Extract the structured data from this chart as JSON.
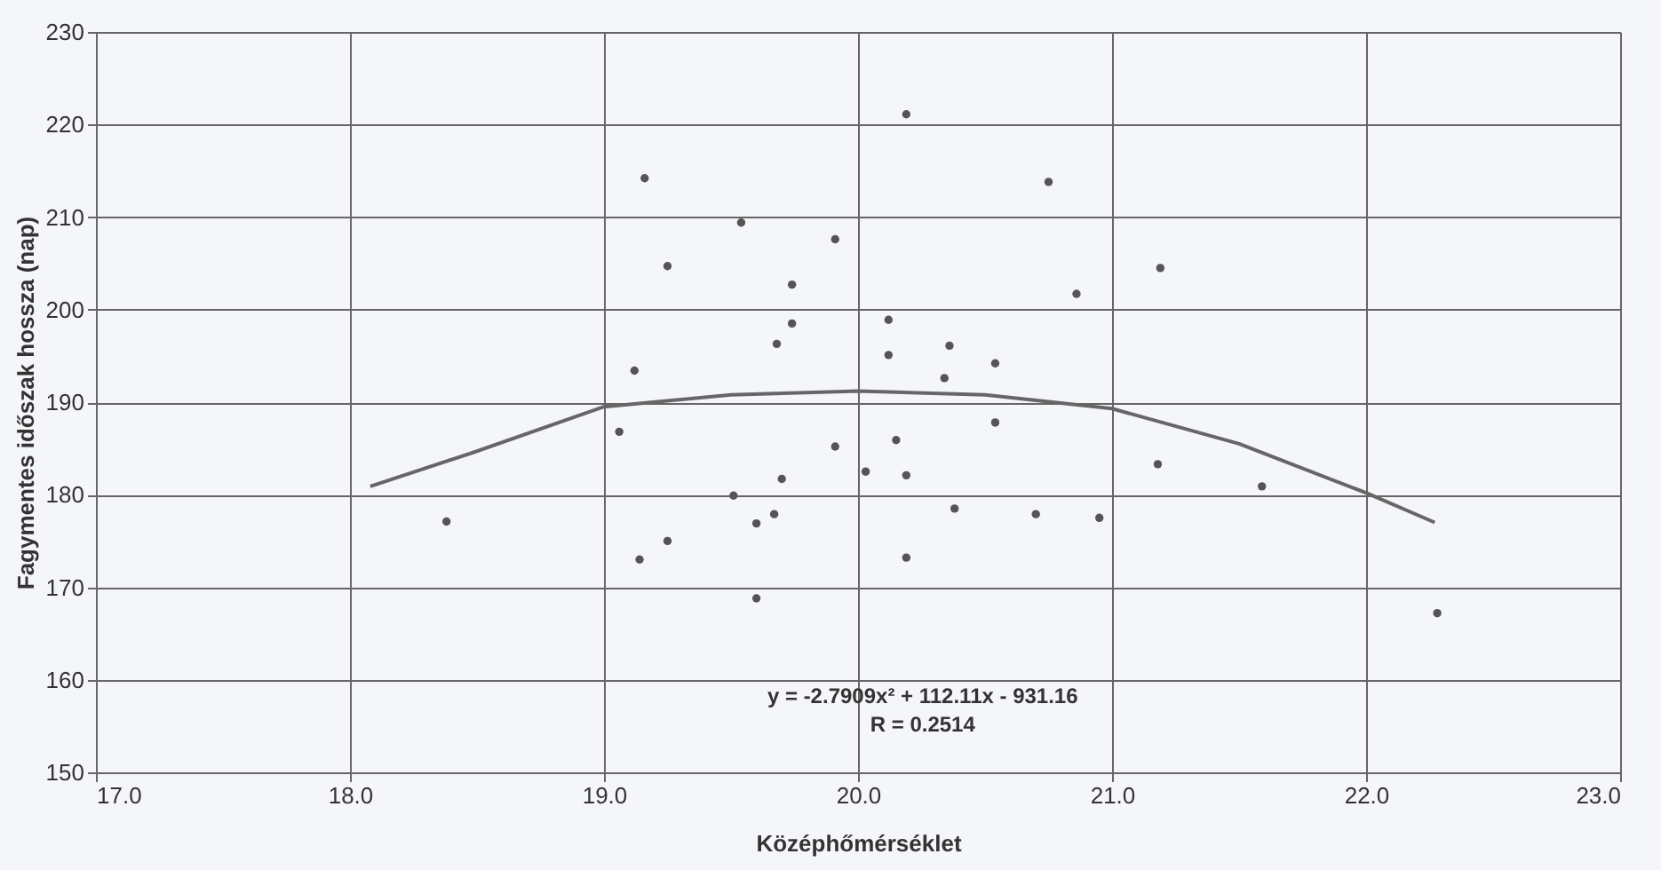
{
  "chart_data": {
    "type": "scatter",
    "xlabel": "Középhőmérséklet",
    "ylabel": "Fagymentes időszak hossza (nap)",
    "xlim": [
      17,
      23
    ],
    "ylim": [
      150,
      230
    ],
    "xticks": [
      {
        "value": 17,
        "label": "17.0"
      },
      {
        "value": 18,
        "label": "18.0"
      },
      {
        "value": 19,
        "label": "19.0"
      },
      {
        "value": 20,
        "label": "20.0"
      },
      {
        "value": 21,
        "label": "21.0"
      },
      {
        "value": 22,
        "label": "22.0"
      },
      {
        "value": 23,
        "label": "23.0"
      }
    ],
    "yticks": [
      150,
      160,
      170,
      180,
      190,
      200,
      210,
      220,
      230
    ],
    "grid": true,
    "series": [
      {
        "color": "#555555",
        "marker": "circle",
        "x": [
          19.16,
          20.19,
          20.75,
          19.54,
          19.91,
          19.25,
          19.74,
          20.86,
          19.74,
          20.12,
          19.68,
          20.12,
          20.36,
          20.54,
          19.12,
          20.34,
          19.06,
          20.54,
          19.91,
          20.15,
          20.03,
          20.19,
          19.7,
          19.51,
          20.38,
          20.7,
          20.95,
          19.67,
          19.6,
          19.25,
          19.14,
          20.19,
          19.6,
          18.38,
          21.19,
          21.18,
          21.59,
          22.28
        ],
        "values": [
          214.2,
          221.1,
          213.8,
          209.4,
          207.6,
          204.7,
          202.7,
          201.7,
          198.5,
          198.9,
          196.3,
          195.1,
          196.1,
          194.2,
          193.4,
          192.6,
          186.8,
          187.8,
          185.2,
          185.9,
          182.5,
          182.1,
          181.7,
          179.9,
          178.5,
          177.9,
          177.5,
          177.9,
          176.9,
          175.0,
          173.0,
          173.2,
          168.8,
          177.1,
          204.5,
          183.3,
          180.9,
          167.2
        ]
      },
      {
        "type": "line",
        "color": "#666666",
        "line_style": "solid",
        "marker": "none",
        "x": [
          18.08,
          18.5,
          19.0,
          19.5,
          20.0,
          20.5,
          21.0,
          21.5,
          22.0,
          22.27
        ],
        "values": [
          180.9,
          184.7,
          189.5,
          190.8,
          191.2,
          190.8,
          189.3,
          185.5,
          180.2,
          177.0
        ]
      }
    ],
    "annotations": [
      "y = -2.7909x² + 112.11x - 931.16",
      "R = 0.2514"
    ]
  }
}
